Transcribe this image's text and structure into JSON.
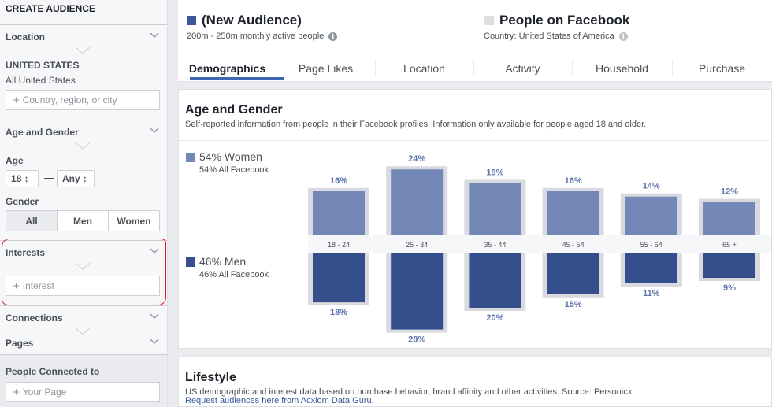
{
  "sidebar": {
    "title": "CREATE AUDIENCE",
    "location_label": "Location",
    "country_heading": "UNITED STATES",
    "country_sub": "All United States",
    "location_placeholder": "Country, region, or city",
    "age_gender_label": "Age and Gender",
    "age_label": "Age",
    "age_min": "18 ↕",
    "age_max": "Any ↕",
    "gender_label": "Gender",
    "gender_options": [
      "All",
      "Men",
      "Women"
    ],
    "gender_selected": "All",
    "interests_label": "Interests",
    "interest_placeholder": "Interest",
    "connections_label": "Connections",
    "pages_label": "Pages",
    "people_connected_label": "People Connected to",
    "page_placeholder": "Your Page"
  },
  "header": {
    "new_audience_title": "(New Audience)",
    "new_audience_sub": "200m - 250m monthly active people",
    "new_audience_color": "#3b5998",
    "fb_title": "People on Facebook",
    "fb_sub": "Country: United States of America",
    "fb_color": "#dddfe2"
  },
  "tabs": [
    "Demographics",
    "Page Likes",
    "Location",
    "Activity",
    "Household",
    "Purchase"
  ],
  "active_tab": "Demographics",
  "age_gender": {
    "title": "Age and Gender",
    "subtitle": "Self-reported information from people in their Facebook profiles. Information only available for people aged 18 and older.",
    "women": {
      "pct": "54% Women",
      "fb": "54% All Facebook",
      "color": "#7488b8"
    },
    "men": {
      "pct": "46% Men",
      "fb": "46% All Facebook",
      "color": "#354f8d"
    }
  },
  "chart_data": {
    "type": "bar",
    "categories": [
      "18 - 24",
      "25 - 34",
      "35 - 44",
      "45 - 54",
      "55 - 64",
      "65 +"
    ],
    "series": [
      {
        "name": "Women",
        "values": [
          16,
          24,
          19,
          16,
          14,
          12
        ],
        "labels": [
          "16%",
          "24%",
          "19%",
          "16%",
          "14%",
          "12%"
        ]
      },
      {
        "name": "Men",
        "values": [
          18,
          28,
          20,
          15,
          11,
          9
        ],
        "labels": [
          "18%",
          "28%",
          "20%",
          "15%",
          "11%",
          "9%"
        ]
      }
    ],
    "grid": false,
    "label_color": "#5b72aa",
    "reference_color": "#d8dadf"
  },
  "lifestyle": {
    "title": "Lifestyle",
    "subtitle": "US demographic and interest data based on purchase behavior, brand affinity and other activities. Source: Personicx",
    "link": "Request audiences here from Acxiom Data Guru."
  }
}
